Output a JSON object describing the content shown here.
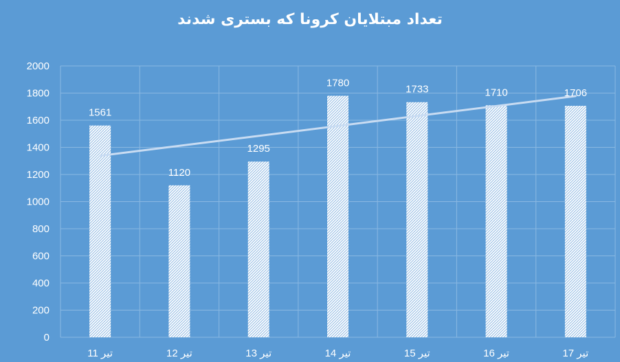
{
  "chart_data": {
    "type": "bar",
    "title": "تعداد مبتلایان کرونا که بستری شدند",
    "categories": [
      "11 تیر",
      "12 تیر",
      "13 تیر",
      "14 تیر",
      "15 تیر",
      "16 تیر",
      "17 تیر"
    ],
    "values": [
      1561,
      1120,
      1295,
      1780,
      1733,
      1710,
      1706
    ],
    "data_labels": [
      "1561",
      "1120",
      "1295",
      "1780",
      "1733",
      "1710",
      "1706"
    ],
    "y_ticks": [
      "0",
      "200",
      "400",
      "600",
      "800",
      "1000",
      "1200",
      "1400",
      "1600",
      "1800",
      "2000"
    ],
    "ylim": [
      0,
      2000
    ],
    "grid": true,
    "trendline": "linear",
    "bar_pattern": "hatched",
    "colors": {
      "background": "#5b9bd5",
      "bar": "#ffffff",
      "grid": "#8ab8e2",
      "trendline": "#c9dcf2",
      "text": "#ffffff"
    }
  }
}
